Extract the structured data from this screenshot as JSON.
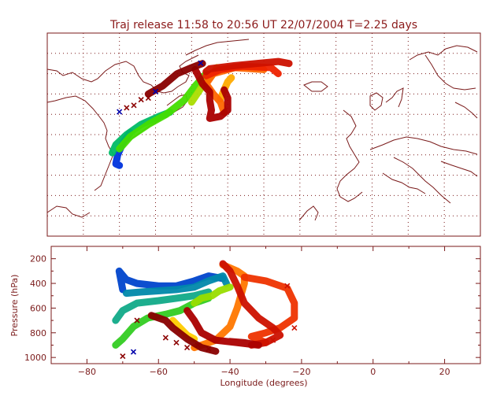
{
  "title": "Traj release 11:58 to 20:56 UT 22/07/2004    T=2.25 days",
  "chart_data": [
    {
      "type": "scatter",
      "panel": "map",
      "title": "Traj release 11:58 to 20:56 UT 22/07/2004    T=2.25 days",
      "xlim": [
        -90,
        30
      ],
      "ylim": [
        20,
        70
      ],
      "grid": true,
      "grid_lon": [
        -80,
        -70,
        -60,
        -50,
        -40,
        -30,
        -20,
        -10,
        0,
        10,
        20
      ],
      "grid_lat": [
        25,
        30,
        35,
        40,
        45,
        50,
        55,
        60,
        65
      ],
      "colors": {
        "frame": "#7a1a1a",
        "coast": "#7a1a1a",
        "grid": "#7a1a1a"
      },
      "series": [
        {
          "color": "#0033dd",
          "path": [
            [
              -70,
              37.4
            ],
            [
              -71,
              37.8
            ],
            [
              -70.5,
              40
            ],
            [
              -69,
              43
            ],
            [
              -67,
              45.5
            ]
          ]
        },
        {
          "color": "#00bb66",
          "path": [
            [
              -72,
              40.5
            ],
            [
              -71,
              42.5
            ],
            [
              -68,
              45
            ],
            [
              -64,
              47.5
            ],
            [
              -59,
              49.5
            ],
            [
              -56,
              50.5
            ]
          ]
        },
        {
          "color": "#44dd00",
          "path": [
            [
              -70,
              41.5
            ],
            [
              -67,
              44.5
            ],
            [
              -62,
              47.5
            ],
            [
              -57,
              50
            ],
            [
              -52,
              53.5
            ],
            [
              -49,
              57
            ],
            [
              -46,
              60
            ]
          ]
        },
        {
          "color": "#aadd00",
          "path": [
            [
              -50,
              53
            ],
            [
              -47,
              57
            ],
            [
              -44,
              60
            ],
            [
              -43,
              61.5
            ]
          ]
        },
        {
          "color": "#ffaa00",
          "path": [
            [
              -42,
              53.8
            ],
            [
              -41,
              56
            ],
            [
              -40,
              58
            ],
            [
              -39,
              59
            ]
          ]
        },
        {
          "color": "#ff6600",
          "path": [
            [
              -41,
              50.5
            ],
            [
              -42,
              53
            ],
            [
              -44,
              55
            ],
            [
              -46,
              57.5
            ],
            [
              -44,
              60
            ],
            [
              -38,
              61.5
            ],
            [
              -30,
              61
            ]
          ]
        },
        {
          "color": "#ee2200",
          "path": [
            [
              -46,
              59.5
            ],
            [
              -42,
              61
            ],
            [
              -36,
              61.8
            ],
            [
              -28,
              61.5
            ],
            [
              -26,
              60
            ]
          ]
        },
        {
          "color": "#cc1100",
          "path": [
            [
              -46,
              60.5
            ],
            [
              -45,
              61.2
            ],
            [
              -38,
              62
            ],
            [
              -32,
              62.5
            ],
            [
              -26,
              63
            ],
            [
              -23,
              62.5
            ]
          ]
        },
        {
          "color": "#aa0000",
          "path": [
            [
              -49,
              61
            ],
            [
              -47,
              57.5
            ],
            [
              -45,
              55.5
            ],
            [
              -45,
              53.5
            ],
            [
              -44.5,
              51
            ],
            [
              -45,
              49
            ],
            [
              -42,
              49.5
            ],
            [
              -40,
              51
            ],
            [
              -40,
              54
            ],
            [
              -41,
              56
            ]
          ]
        },
        {
          "color": "#880000",
          "path": [
            [
              -62,
              55
            ],
            [
              -58,
              57
            ],
            [
              -54,
              60
            ],
            [
              -50,
              61.5
            ],
            [
              -47,
              62.5
            ]
          ]
        }
      ],
      "markers": [
        {
          "lon": -47.5,
          "lat": 62.6,
          "color": "#0000aa"
        },
        {
          "lon": -60,
          "lat": 55.6,
          "color": "#0000aa"
        },
        {
          "lon": -64,
          "lat": 53.6,
          "color": "#8b0000"
        },
        {
          "lon": -68,
          "lat": 51.6,
          "color": "#8b0000"
        },
        {
          "lon": -70,
          "lat": 50.6,
          "color": "#0000aa"
        },
        {
          "lon": -66,
          "lat": 52.2,
          "color": "#8b0000"
        },
        {
          "lon": -62,
          "lat": 54.0,
          "color": "#8b0000"
        }
      ]
    },
    {
      "type": "scatter",
      "panel": "pressure",
      "xlabel": "Longitude  (degrees)",
      "ylabel": "Pressure  (hPa)",
      "xlim": [
        -90,
        30
      ],
      "ylim": [
        1050,
        100
      ],
      "xticks": [
        -80,
        -60,
        -40,
        -20,
        0,
        20
      ],
      "yticks": [
        200,
        400,
        600,
        800,
        1000
      ],
      "series": [
        {
          "color": "#0044cc",
          "path": [
            [
              -70,
              450
            ],
            [
              -71,
              300
            ],
            [
              -69,
              370
            ],
            [
              -66,
              400
            ],
            [
              -60,
              420
            ],
            [
              -55,
              420
            ],
            [
              -50,
              380
            ],
            [
              -46,
              340
            ],
            [
              -42,
              360
            ]
          ]
        },
        {
          "color": "#0088aa",
          "path": [
            [
              -69,
              480
            ],
            [
              -65,
              470
            ],
            [
              -60,
              460
            ],
            [
              -55,
              450
            ],
            [
              -50,
              430
            ],
            [
              -46,
              380
            ],
            [
              -42,
              340
            ],
            [
              -41,
              400
            ]
          ]
        },
        {
          "color": "#11aa88",
          "path": [
            [
              -72,
              700
            ],
            [
              -70,
              620
            ],
            [
              -66,
              560
            ],
            [
              -60,
              540
            ],
            [
              -55,
              520
            ],
            [
              -50,
              500
            ],
            [
              -46,
              470
            ]
          ]
        },
        {
          "color": "#33cc22",
          "path": [
            [
              -72,
              900
            ],
            [
              -70,
              850
            ],
            [
              -67,
              750
            ],
            [
              -63,
              680
            ],
            [
              -58,
              650
            ],
            [
              -54,
              620
            ],
            [
              -50,
              560
            ],
            [
              -46,
              520
            ]
          ]
        },
        {
          "color": "#99dd00",
          "path": [
            [
              -50,
              560
            ],
            [
              -48,
              520
            ],
            [
              -45,
              500
            ],
            [
              -43,
              460
            ],
            [
              -40,
              430
            ]
          ]
        },
        {
          "color": "#ffcc00",
          "path": [
            [
              -56,
              700
            ],
            [
              -54,
              760
            ],
            [
              -52,
              820
            ],
            [
              -50,
              850
            ]
          ]
        },
        {
          "color": "#ff7700",
          "path": [
            [
              -42,
              250
            ],
            [
              -38,
              300
            ],
            [
              -36,
              340
            ],
            [
              -36,
              400
            ],
            [
              -38,
              600
            ],
            [
              -40,
              750
            ],
            [
              -44,
              860
            ],
            [
              -50,
              920
            ]
          ]
        },
        {
          "color": "#ee3300",
          "path": [
            [
              -36,
              350
            ],
            [
              -30,
              380
            ],
            [
              -24,
              440
            ],
            [
              -22,
              560
            ],
            [
              -22,
              680
            ],
            [
              -26,
              760
            ],
            [
              -30,
              800
            ],
            [
              -34,
              830
            ],
            [
              -30,
              880
            ]
          ]
        },
        {
          "color": "#cc1100",
          "path": [
            [
              -42,
              240
            ],
            [
              -40,
              300
            ],
            [
              -38,
              420
            ],
            [
              -36,
              560
            ],
            [
              -32,
              680
            ],
            [
              -28,
              760
            ],
            [
              -26,
              820
            ],
            [
              -30,
              880
            ],
            [
              -34,
              900
            ]
          ]
        },
        {
          "color": "#aa0000",
          "path": [
            [
              -52,
              620
            ],
            [
              -50,
              700
            ],
            [
              -48,
              800
            ],
            [
              -44,
              860
            ],
            [
              -38,
              880
            ],
            [
              -32,
              900
            ],
            [
              -36,
              880
            ],
            [
              -40,
              870
            ]
          ]
        },
        {
          "color": "#880000",
          "path": [
            [
              -62,
              660
            ],
            [
              -58,
              700
            ],
            [
              -56,
              760
            ],
            [
              -52,
              850
            ],
            [
              -48,
              920
            ],
            [
              -44,
              950
            ]
          ]
        }
      ],
      "markers": [
        {
          "lon": -67,
          "lat": 955,
          "color": "#0000aa"
        },
        {
          "lon": -70,
          "lat": 990,
          "color": "#8b0000"
        },
        {
          "lon": -58,
          "lat": 840,
          "color": "#8b0000"
        },
        {
          "lon": -55,
          "lat": 880,
          "color": "#8b0000"
        },
        {
          "lon": -52,
          "lat": 920,
          "color": "#8b0000"
        },
        {
          "lon": -49,
          "lat": 900,
          "color": "#8b0000"
        },
        {
          "lon": -46,
          "lat": 930,
          "color": "#8b0000"
        },
        {
          "lon": -24,
          "lat": 420,
          "color": "#cc1100"
        },
        {
          "lon": -22,
          "lat": 760,
          "color": "#cc1100"
        },
        {
          "lon": -28,
          "lat": 860,
          "color": "#cc1100"
        },
        {
          "lon": -66,
          "lat": 700,
          "color": "#8b0000"
        }
      ]
    }
  ]
}
